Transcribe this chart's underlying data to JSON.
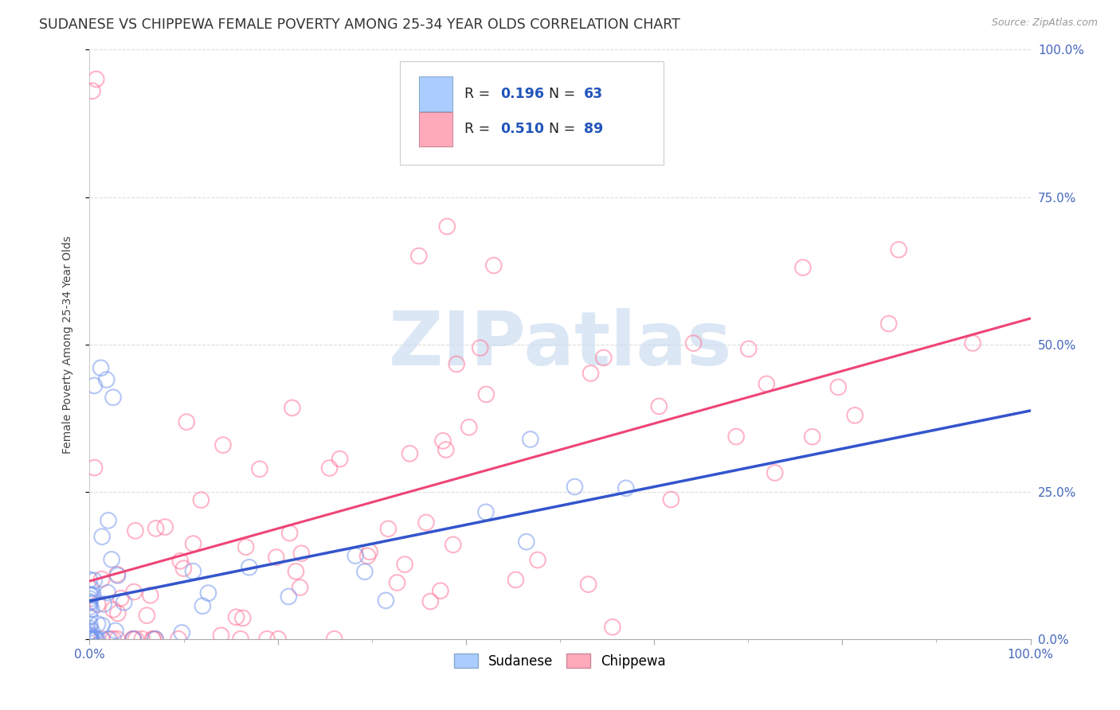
{
  "title": "SUDANESE VS CHIPPEWA FEMALE POVERTY AMONG 25-34 YEAR OLDS CORRELATION CHART",
  "source": "Source: ZipAtlas.com",
  "ylabel": "Female Poverty Among 25-34 Year Olds",
  "right_ytick_labels": [
    "0.0%",
    "25.0%",
    "50.0%",
    "75.0%",
    "100.0%"
  ],
  "sudanese_color": "#7799ee",
  "chippewa_color": "#ff7799",
  "sudanese_line_color": "#3355cc",
  "chippewa_line_color": "#ee4477",
  "sudanese_dashed_color": "#aabbdd",
  "sudanese_R": 0.196,
  "sudanese_N": 63,
  "chippewa_R": 0.51,
  "chippewa_N": 89,
  "background_color": "#ffffff",
  "grid_color": "#dddddd",
  "watermark_text": "ZIPatlas",
  "watermark_color": "#ccddf0",
  "title_fontsize": 12.5,
  "axis_label_fontsize": 10,
  "tick_fontsize": 11,
  "legend_box_color": "#f5f5f5",
  "legend_border_color": "#cccccc",
  "legend_sq1_face": "#aaccff",
  "legend_sq1_edge": "#88aacc",
  "legend_sq2_face": "#ffaabb",
  "legend_sq2_edge": "#cc8899",
  "legend_text_color": "#222222",
  "legend_val_color": "#2255bb",
  "bottom_legend_sq1": "#aaccff",
  "bottom_legend_sq2": "#ffaabb",
  "sudanese_seed": 42,
  "chippewa_seed": 77
}
